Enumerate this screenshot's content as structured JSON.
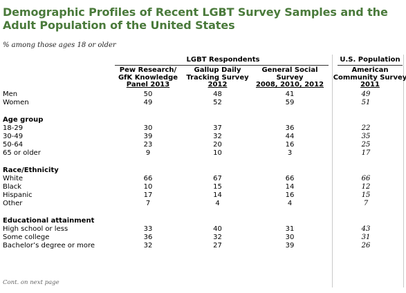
{
  "title": "Demographic Profiles of Recent LGBT Survey Samples and the Adult Population of the United States",
  "subtitle": "% among those ages 18 or older",
  "group_headers": {
    "lgbt": "LGBT Respondents",
    "us": "U.S. Population"
  },
  "columns": [
    {
      "lines": [
        "Pew Research/",
        "GfK Knowledge"
      ],
      "last": "Panel 2013"
    },
    {
      "lines": [
        "Gallup Daily",
        "Tracking Survey"
      ],
      "last": "2012"
    },
    {
      "lines": [
        "General Social",
        "Survey"
      ],
      "last": "2008, 2010, 2012"
    },
    {
      "lines": [
        "American",
        "Community Survey"
      ],
      "last": "2011"
    }
  ],
  "rows": {
    "men": {
      "label": "Men",
      "values": [
        "50",
        "48",
        "41",
        "49"
      ]
    },
    "women": {
      "label": "Women",
      "values": [
        "49",
        "52",
        "59",
        "51"
      ]
    },
    "age_header": "Age group",
    "age_18_29": {
      "label": "18-29",
      "values": [
        "30",
        "37",
        "36",
        "22"
      ]
    },
    "age_30_49": {
      "label": "30-49",
      "values": [
        "39",
        "32",
        "44",
        "35"
      ]
    },
    "age_50_64": {
      "label": "50-64",
      "values": [
        "23",
        "20",
        "16",
        "25"
      ]
    },
    "age_65": {
      "label": "65 or older",
      "values": [
        "9",
        "10",
        "3",
        "17"
      ]
    },
    "race_header": "Race/Ethnicity",
    "white": {
      "label": "White",
      "values": [
        "66",
        "67",
        "66",
        "66"
      ]
    },
    "black": {
      "label": "Black",
      "values": [
        "10",
        "15",
        "14",
        "12"
      ]
    },
    "hispanic": {
      "label": "Hispanic",
      "values": [
        "17",
        "14",
        "16",
        "15"
      ]
    },
    "other": {
      "label": "Other",
      "values": [
        "7",
        "4",
        "4",
        "7"
      ]
    },
    "edu_header": "Educational attainment",
    "hs": {
      "label": "High school or less",
      "values": [
        "33",
        "40",
        "31",
        "43"
      ]
    },
    "some_college": {
      "label": "Some college",
      "values": [
        "36",
        "32",
        "30",
        "31"
      ]
    },
    "bachelor": {
      "label": "Bachelor’s degree or more",
      "values": [
        "32",
        "27",
        "39",
        "26"
      ]
    }
  },
  "footnote": "Cont. on next page"
}
